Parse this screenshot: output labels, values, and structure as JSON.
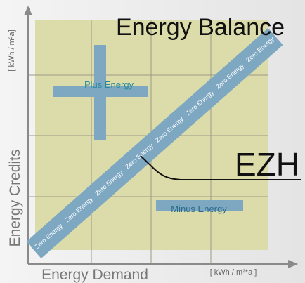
{
  "title": "Energy Balance",
  "tag": "EZH",
  "y_axis": {
    "label": "Energy Credits",
    "unit": "[ kWh / m²a]"
  },
  "x_axis": {
    "label": "Energy Demand",
    "unit": "[ kWh / m²*a ]"
  },
  "band_label": "Zero Energy",
  "regions": {
    "plus": "Plus Energy",
    "minus": "Minus Energy"
  }
}
